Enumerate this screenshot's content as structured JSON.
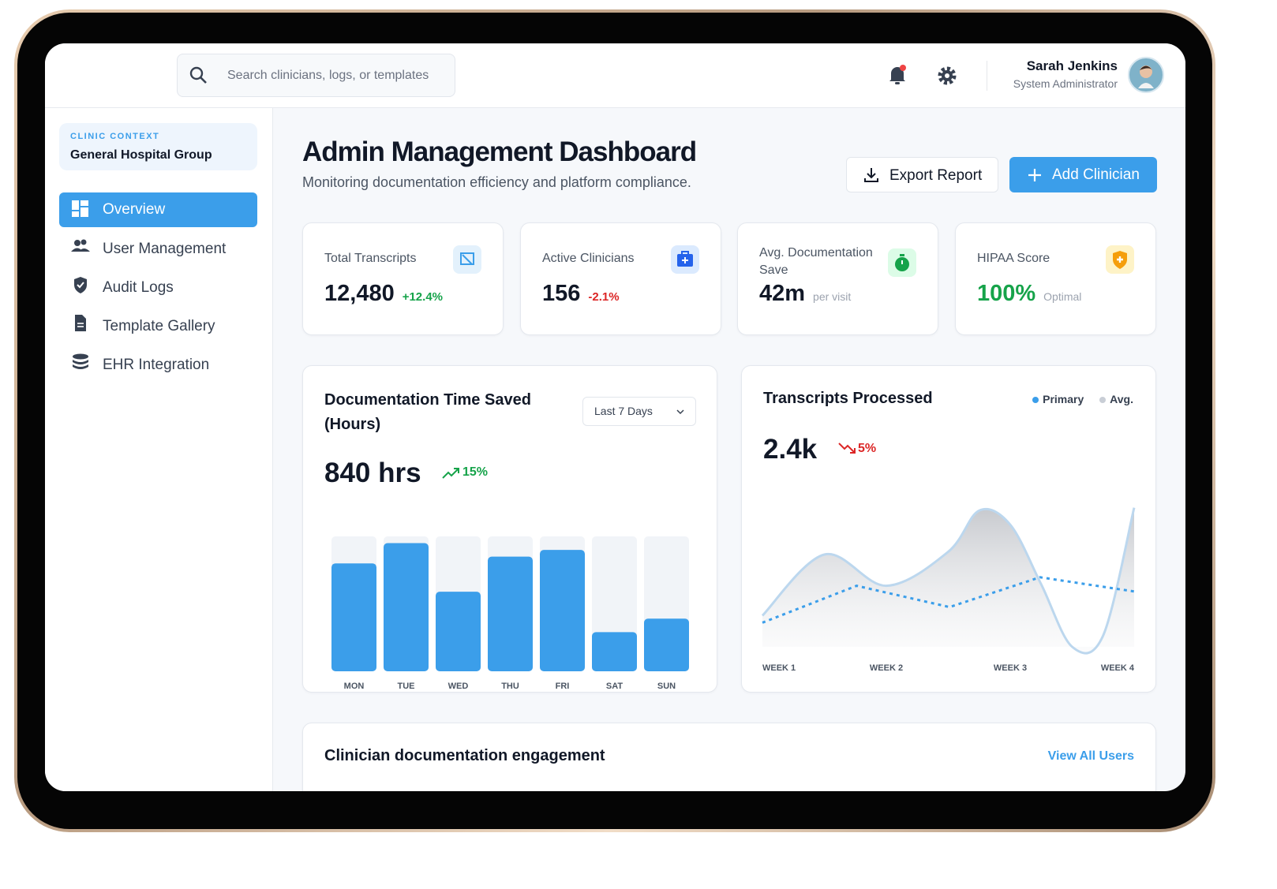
{
  "header": {
    "search_placeholder": "Search clinicians, logs, or templates",
    "user_name": "Sarah Jenkins",
    "user_role": "System Administrator"
  },
  "sidebar": {
    "context_label": "CLINIC CONTEXT",
    "context_name": "General Hospital Group",
    "nav": [
      "Overview",
      "User Management",
      "Audit Logs",
      "Template Gallery",
      "EHR Integration"
    ]
  },
  "page": {
    "title": "Admin Management Dashboard",
    "subtitle": "Monitoring documentation efficiency and platform compliance.",
    "export": "Export Report",
    "add": "Add Clinician"
  },
  "stats": [
    {
      "label": "Total Transcripts",
      "value": "12,480",
      "change": "+12.4%"
    },
    {
      "label": "Active Clinicians",
      "value": "156",
      "change": "-2.1%"
    },
    {
      "label": "Avg. Documentation Save",
      "value": "42m",
      "change": "per visit"
    },
    {
      "label": "HIPAA Score",
      "value": "100%",
      "change": "Optimal"
    }
  ],
  "chart_data": [
    {
      "type": "bar",
      "title": "Documentation Time Saved (Hours)",
      "headline": "840 hrs",
      "change": "15%",
      "filter": "Last 7 Days",
      "categories": [
        "MON",
        "TUE",
        "WED",
        "THU",
        "FRI",
        "SAT",
        "SUN"
      ],
      "values": [
        80,
        95,
        59,
        85,
        90,
        29,
        39
      ],
      "ylim": [
        0,
        100
      ],
      "color": "#3b9eea"
    },
    {
      "type": "line",
      "title": "Transcripts Processed",
      "headline": "2.4k",
      "change": "5%",
      "xlim": [
        1,
        4
      ],
      "xticks": [
        {
          "value": 1,
          "label": "WEEK 1"
        },
        {
          "value": 2,
          "label": "WEEK 2"
        },
        {
          "value": 3,
          "label": "WEEK 3"
        },
        {
          "value": 4,
          "label": "WEEK 4"
        }
      ],
      "ylim": [
        0,
        100
      ],
      "series": [
        {
          "name": "Primary",
          "color": "#3b9eea",
          "line_color": "#bcd7ee",
          "x": [
            1,
            1.5,
            2,
            2.5,
            2.75,
            3,
            3.25,
            3.5,
            3.75,
            4
          ],
          "values": [
            22,
            65,
            43,
            67,
            96,
            86,
            44,
            0,
            8,
            98
          ]
        },
        {
          "name": "Avg.",
          "color": "#c9ced6",
          "line_color": "#3b9eea",
          "x": [
            1,
            1.76,
            2.51,
            3.24,
            4
          ],
          "values": [
            17,
            43,
            28,
            49,
            39
          ]
        }
      ]
    }
  ],
  "engagement": {
    "title": "Clinician documentation engagement",
    "link": "View All Users"
  }
}
